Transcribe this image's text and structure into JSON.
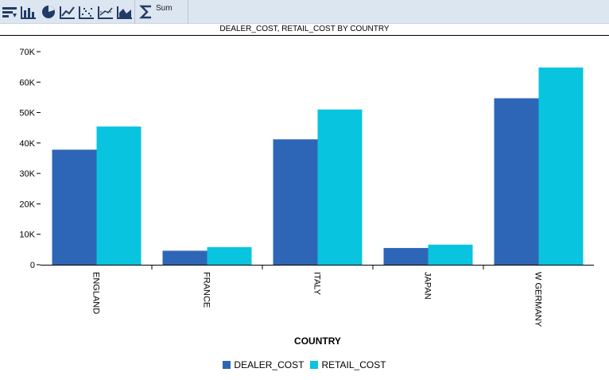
{
  "toolbar": {
    "buttons": [
      {
        "name": "sort-icon"
      },
      {
        "name": "bar-chart-icon"
      },
      {
        "name": "pie-chart-icon"
      },
      {
        "name": "line-chart-icon"
      },
      {
        "name": "scatter-chart-icon"
      },
      {
        "name": "trend-chart-icon"
      },
      {
        "name": "area-chart-icon"
      }
    ],
    "sum_label": "Sum"
  },
  "colors": {
    "toolbar_bg": "#dce6f1",
    "icon": "#223a66",
    "series1": "#2e66b7",
    "series2": "#08c4df"
  },
  "chart_data": {
    "type": "bar",
    "title": "DEALER_COST, RETAIL_COST BY COUNTRY",
    "xlabel": "COUNTRY",
    "ylabel": "",
    "categories": [
      "ENGLAND",
      "FRANCE",
      "ITALY",
      "JAPAN",
      "W GERMANY"
    ],
    "series": [
      {
        "name": "DEALER_COST",
        "color": "#2e66b7",
        "values": [
          37800,
          4600,
          41200,
          5500,
          54700
        ]
      },
      {
        "name": "RETAIL_COST",
        "color": "#08c4df",
        "values": [
          45400,
          5800,
          51000,
          6600,
          64800
        ]
      }
    ],
    "ylim": [
      0,
      70000
    ],
    "yticks": [
      0,
      10000,
      20000,
      30000,
      40000,
      50000,
      60000,
      70000
    ],
    "ytick_labels": [
      "0",
      "10K",
      "20K",
      "30K",
      "40K",
      "50K",
      "60K",
      "70K"
    ],
    "grid": false,
    "legend_position": "bottom"
  }
}
